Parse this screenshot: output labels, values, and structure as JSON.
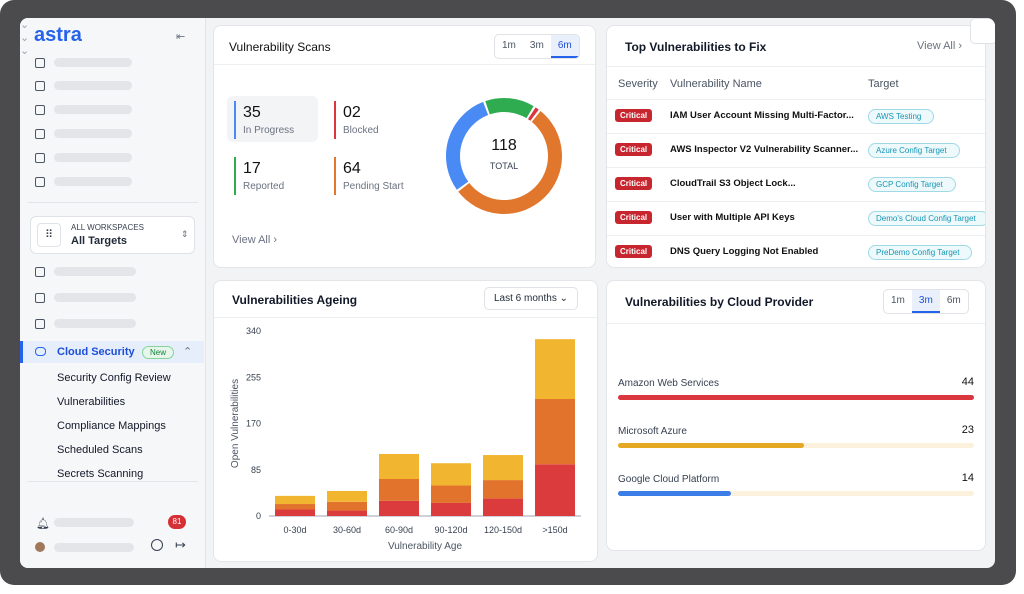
{
  "sidebar": {
    "logo": "astra",
    "workspace": {
      "label": "ALL WORKSPACES",
      "value": "All Targets"
    },
    "active_item": {
      "label": "Cloud Security",
      "badge": "New"
    },
    "submenu": [
      "Security Config Review",
      "Vulnerabilities",
      "Compliance Mappings",
      "Scheduled Scans",
      "Secrets Scanning"
    ],
    "notifications": "81"
  },
  "vulnerability_scans": {
    "title": "Vulnerability Scans",
    "tabs": [
      "1m",
      "3m",
      "6m"
    ],
    "active_tab": "6m",
    "stats": [
      {
        "value": 35,
        "name": "In Progress",
        "color": "#4a8af4"
      },
      {
        "value": 2,
        "label": "02",
        "name": "Blocked",
        "color": "#d9363e"
      },
      {
        "value": 17,
        "name": "Reported",
        "color": "#2eac4f"
      },
      {
        "value": 64,
        "name": "Pending Start",
        "color": "#e0772d"
      }
    ],
    "total": {
      "value": 118,
      "label": "TOTAL"
    },
    "view_all": "View All"
  },
  "top_vulnerabilities": {
    "title": "Top Vulnerabilities to Fix",
    "view_all": "View All",
    "columns": [
      "Severity",
      "Vulnerability Name",
      "Target"
    ],
    "rows": [
      [
        "Critical",
        "IAM User Account Missing Multi-Factor...",
        "AWS Testing"
      ],
      [
        "Critical",
        "AWS Inspector V2 Vulnerability Scanner...",
        "Azure Config Target"
      ],
      [
        "Critical",
        "CloudTrail S3 Object Lock...",
        "GCP Config Target"
      ],
      [
        "Critical",
        "User with Multiple API Keys",
        "Demo's Cloud Config Target"
      ],
      [
        "Critical",
        "DNS Query Logging Not Enabled",
        "PreDemo Config Target"
      ]
    ]
  },
  "chart_data": [
    {
      "type": "bar",
      "stacked": true,
      "title": "Vulnerabilities Ageing",
      "filter": "Last 6 months",
      "x_label": "Vulnerability Age",
      "y_label": "Open Vulnerabilities",
      "categories": [
        "0-30d",
        "30-60d",
        "60-90d",
        "90-120d",
        "120-150d",
        ">150d"
      ],
      "series": [
        {
          "color": "#dc3b3d",
          "values": [
            12,
            10,
            28,
            24,
            32,
            95
          ]
        },
        {
          "color": "#e2732c",
          "values": [
            10,
            16,
            40,
            32,
            34,
            120
          ]
        },
        {
          "color": "#f2b530",
          "values": [
            15,
            20,
            46,
            41,
            46,
            110
          ]
        }
      ],
      "ylim": [
        0,
        340
      ],
      "yticks": [
        0,
        85,
        170,
        255,
        340
      ],
      "grid": false
    },
    {
      "type": "progress",
      "title": "Vulnerabilities by Cloud Provider",
      "tabs": [
        "1m",
        "3m",
        "6m"
      ],
      "active_tab": "3m",
      "categories": [
        "Amazon Web Services",
        "Microsoft Azure",
        "Google Cloud Platform"
      ],
      "values": [
        44,
        23,
        14
      ],
      "colors": [
        "#d9363e",
        "#e5a823",
        "#3b7ee8"
      ],
      "tracks": [
        "#f8dede",
        "#fbf1dc",
        "#fbf1dc"
      ]
    }
  ]
}
